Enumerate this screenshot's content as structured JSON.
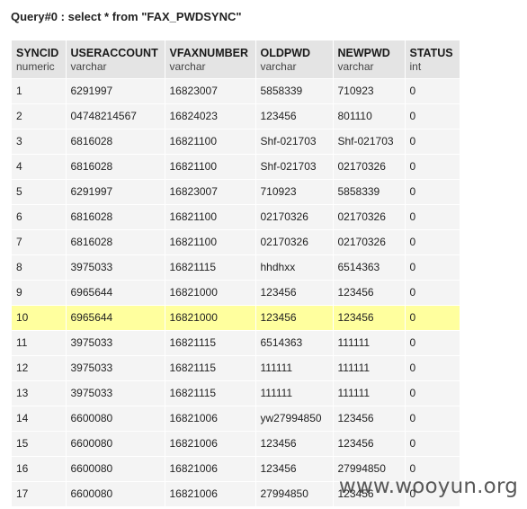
{
  "query": {
    "title": "Query#0 : select * from \"FAX_PWDSYNC\""
  },
  "table": {
    "columns": [
      {
        "name": "SYNCID",
        "type": "numeric"
      },
      {
        "name": "USERACCOUNT",
        "type": "varchar"
      },
      {
        "name": "VFAXNUMBER",
        "type": "varchar"
      },
      {
        "name": "OLDPWD",
        "type": "varchar"
      },
      {
        "name": "NEWPWD",
        "type": "varchar"
      },
      {
        "name": "STATUS",
        "type": "int"
      }
    ],
    "highlighted_row": 9,
    "rows": [
      [
        "1",
        "6291997",
        "16823007",
        "5858339",
        "710923",
        "0"
      ],
      [
        "2",
        "04748214567",
        "16824023",
        "123456",
        "801110",
        "0"
      ],
      [
        "3",
        "6816028",
        "16821100",
        "Shf-021703",
        "Shf-021703",
        "0"
      ],
      [
        "4",
        "6816028",
        "16821100",
        "Shf-021703",
        "02170326",
        "0"
      ],
      [
        "5",
        "6291997",
        "16823007",
        "710923",
        "5858339",
        "0"
      ],
      [
        "6",
        "6816028",
        "16821100",
        "02170326",
        "02170326",
        "0"
      ],
      [
        "7",
        "6816028",
        "16821100",
        "02170326",
        "02170326",
        "0"
      ],
      [
        "8",
        "3975033",
        "16821115",
        "hhdhxx",
        "6514363",
        "0"
      ],
      [
        "9",
        "6965644",
        "16821000",
        "123456",
        "123456",
        "0"
      ],
      [
        "10",
        "6965644",
        "16821000",
        "123456",
        "123456",
        "0"
      ],
      [
        "11",
        "3975033",
        "16821115",
        "6514363",
        "111111",
        "0"
      ],
      [
        "12",
        "3975033",
        "16821115",
        "111111",
        "111111",
        "0"
      ],
      [
        "13",
        "3975033",
        "16821115",
        "111111",
        "111111",
        "0"
      ],
      [
        "14",
        "6600080",
        "16821006",
        "yw27994850",
        "123456",
        "0"
      ],
      [
        "15",
        "6600080",
        "16821006",
        "123456",
        "123456",
        "0"
      ],
      [
        "16",
        "6600080",
        "16821006",
        "123456",
        "27994850",
        "0"
      ],
      [
        "17",
        "6600080",
        "16821006",
        "27994850",
        "123456",
        "0"
      ]
    ]
  },
  "colors": {
    "header_bg": "#e4e4e4",
    "row_bg": "#f4f4f4",
    "highlight_bg": "#ffff9e"
  },
  "watermark": {
    "text": "www.wooyun.org"
  }
}
